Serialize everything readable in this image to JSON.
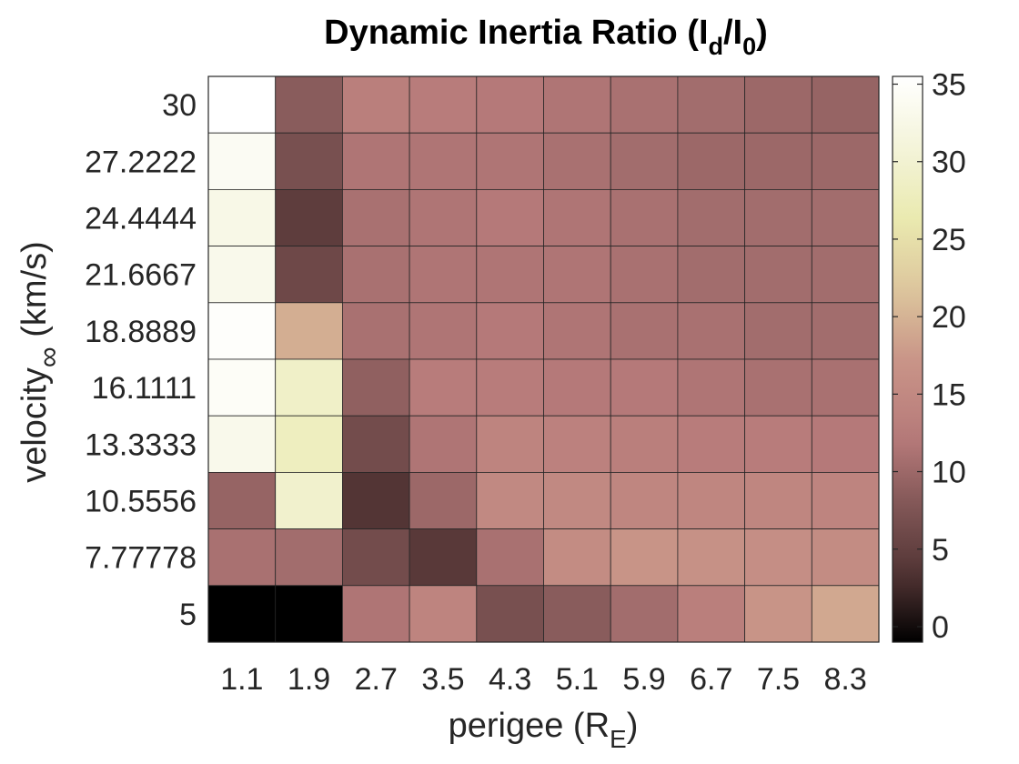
{
  "chart_data": {
    "type": "heatmap",
    "title": "Dynamic Inertia Ratio (I_d/I_0)",
    "title_parts": {
      "main": "Dynamic Inertia Ratio (I",
      "sub1": "d",
      "mid": "/I",
      "sub2": "0",
      "end": ")"
    },
    "xlabel": "perigee (R_E)",
    "xlabel_parts": {
      "main": "perigee (R",
      "sub": "E",
      "end": ")"
    },
    "ylabel": "velocity_∞ (km/s)",
    "ylabel_parts": {
      "main": "velocity",
      "sub": "∞",
      "end": " (km/s)"
    },
    "x": [
      "1.1",
      "1.9",
      "2.7",
      "3.5",
      "4.3",
      "5.1",
      "5.9",
      "6.7",
      "7.5",
      "8.3"
    ],
    "y": [
      "30",
      "27.2222",
      "24.4444",
      "21.6667",
      "18.8889",
      "16.1111",
      "13.3333",
      "10.5556",
      "7.77778",
      "5"
    ],
    "values": [
      [
        35.5,
        8.5,
        13.0,
        12.5,
        12.0,
        11.5,
        11.0,
        10.5,
        10.0,
        9.5
      ],
      [
        34.0,
        7.0,
        11.5,
        11.5,
        11.5,
        11.0,
        10.5,
        10.0,
        10.0,
        10.0
      ],
      [
        32.5,
        4.5,
        11.0,
        11.5,
        12.0,
        11.5,
        11.0,
        10.5,
        10.5,
        10.5
      ],
      [
        33.0,
        6.0,
        11.0,
        11.5,
        11.5,
        11.5,
        11.0,
        10.5,
        10.5,
        10.5
      ],
      [
        35.0,
        19.5,
        11.0,
        11.5,
        12.0,
        11.5,
        11.0,
        11.0,
        10.5,
        10.5
      ],
      [
        34.5,
        29.0,
        9.0,
        12.5,
        12.5,
        12.0,
        12.0,
        11.5,
        11.0,
        11.0
      ],
      [
        33.0,
        28.0,
        6.5,
        11.5,
        14.0,
        13.5,
        13.0,
        12.5,
        12.5,
        12.0
      ],
      [
        9.5,
        29.5,
        3.5,
        10.0,
        15.0,
        15.0,
        14.5,
        14.5,
        14.5,
        14.0
      ],
      [
        11.0,
        10.5,
        6.5,
        4.0,
        11.0,
        15.5,
        17.0,
        16.5,
        16.0,
        15.5
      ],
      [
        -1.5,
        -1.0,
        11.5,
        14.0,
        7.0,
        8.5,
        10.5,
        13.0,
        17.0,
        19.0
      ]
    ],
    "colorbar": {
      "ticks": [
        0,
        5,
        10,
        15,
        20,
        25,
        30,
        35
      ],
      "range": [
        -1,
        35.5
      ],
      "colormap": "pink"
    },
    "grid": false,
    "legend": "none"
  }
}
